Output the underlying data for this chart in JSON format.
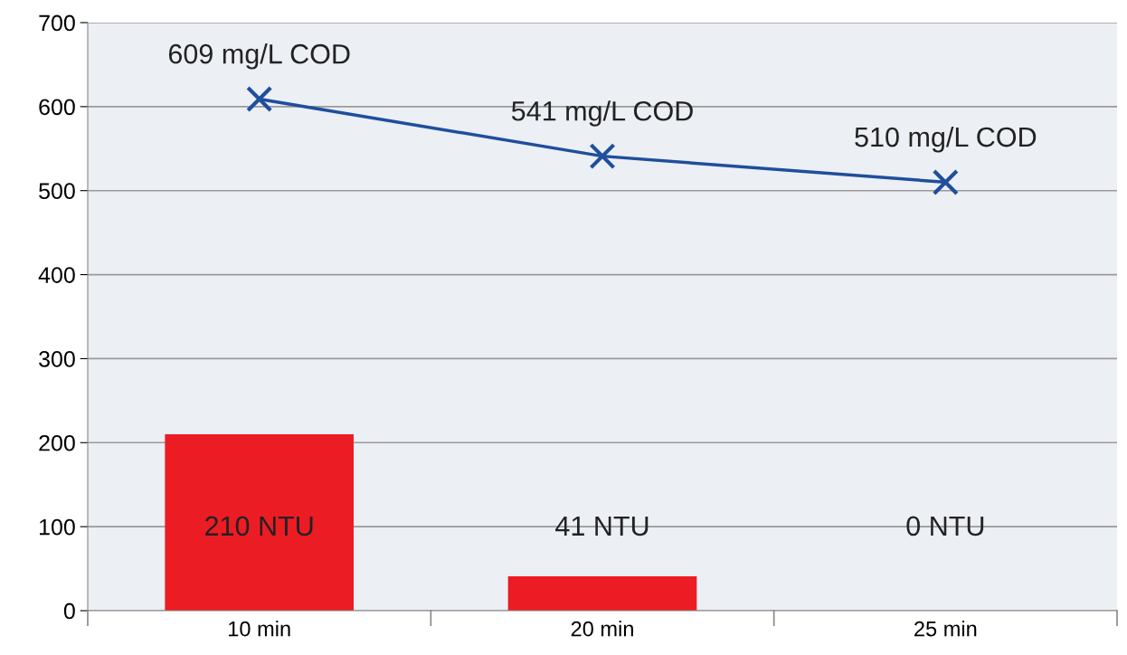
{
  "chart_data": {
    "type": "bar",
    "categories": [
      "10 min",
      "20 min",
      "25 min"
    ],
    "series": [
      {
        "color": "#ec1c24",
        "values": [
          210,
          41,
          0
        ],
        "value_labels": [
          "210 NTU",
          "41 NTU",
          "0 NTU"
        ]
      },
      {
        "type": "line",
        "color": "#1f4e9c",
        "values": [
          609,
          541,
          510
        ],
        "value_labels": [
          "609 mg/L COD",
          "541 mg/L COD",
          "510 mg/L COD"
        ],
        "marker": "cross",
        "line_style": "solid"
      }
    ],
    "ylim": [
      0,
      700
    ],
    "yticks": [
      0,
      100,
      200,
      300,
      400,
      500,
      600,
      700
    ],
    "grid": "y",
    "legend": false
  }
}
